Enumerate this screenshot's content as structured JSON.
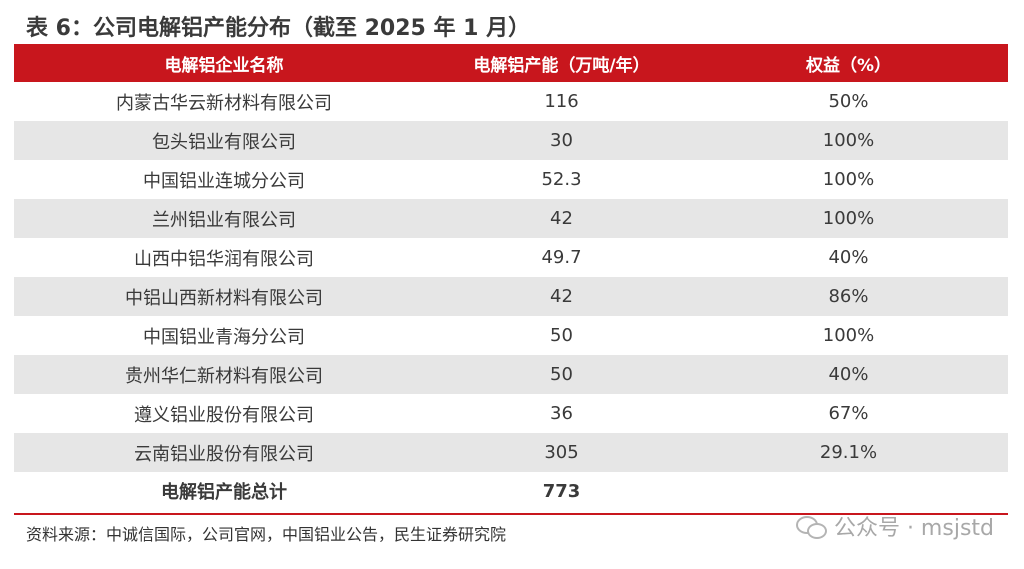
{
  "title": "表 6：公司电解铝产能分布（截至 2025 年 1 月）",
  "table": {
    "headers": [
      "电解铝企业名称",
      "电解铝产能（万吨/年）",
      "权益（%）"
    ],
    "rows": [
      {
        "name": "内蒙古华云新材料有限公司",
        "capacity": "116",
        "equity": "50%"
      },
      {
        "name": "包头铝业有限公司",
        "capacity": "30",
        "equity": "100%"
      },
      {
        "name": "中国铝业连城分公司",
        "capacity": "52.3",
        "equity": "100%"
      },
      {
        "name": "兰州铝业有限公司",
        "capacity": "42",
        "equity": "100%"
      },
      {
        "name": "山西中铝华润有限公司",
        "capacity": "49.7",
        "equity": "40%"
      },
      {
        "name": "中铝山西新材料有限公司",
        "capacity": "42",
        "equity": "86%"
      },
      {
        "name": "中国铝业青海分公司",
        "capacity": "50",
        "equity": "100%"
      },
      {
        "name": "贵州华仁新材料有限公司",
        "capacity": "50",
        "equity": "40%"
      },
      {
        "name": "遵义铝业股份有限公司",
        "capacity": "36",
        "equity": "67%"
      },
      {
        "name": "云南铝业股份有限公司",
        "capacity": "305",
        "equity": "29.1%"
      }
    ],
    "total": {
      "name": "电解铝产能总计",
      "capacity": "773",
      "equity": ""
    }
  },
  "source": "资料来源：中诚信国际，公司官网，中国铝业公告，民生证券研究院",
  "watermark": {
    "text": "公众号 · msjstd",
    "icon": "wechat-icon"
  },
  "colors": {
    "accent": "#c8161d",
    "stripe": "#e6e6e6"
  }
}
